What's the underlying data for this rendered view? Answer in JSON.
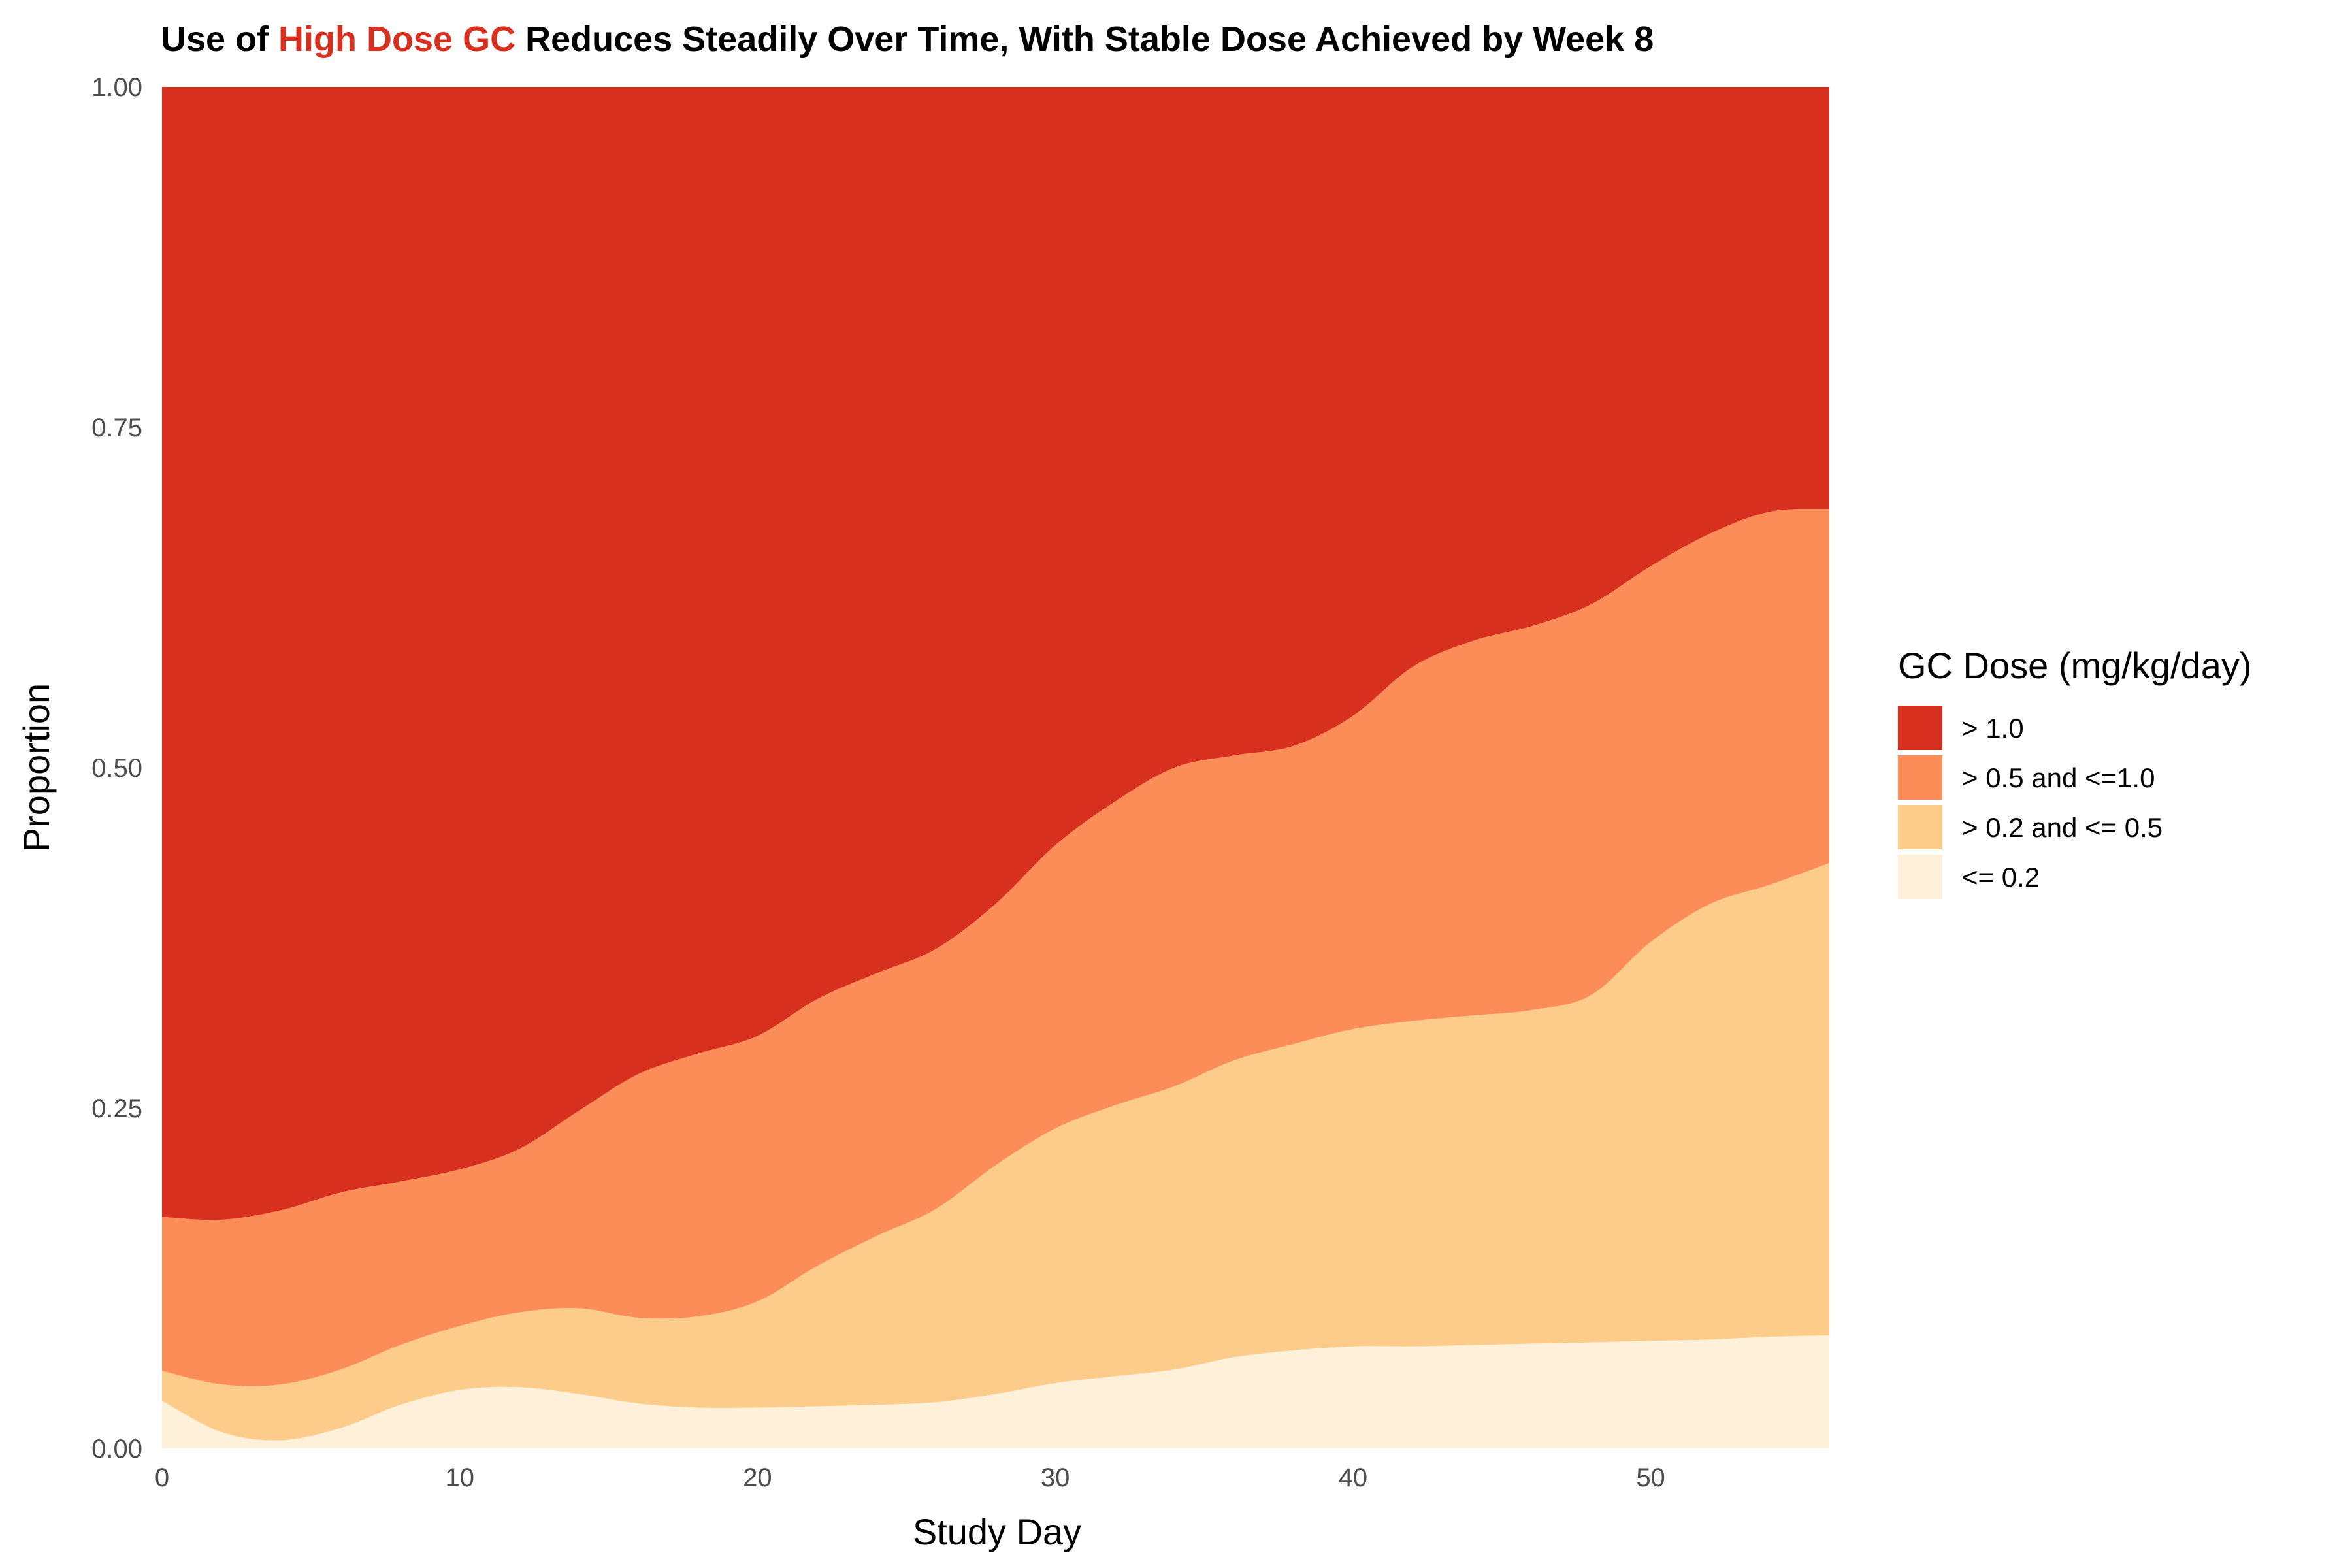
{
  "chart_data": {
    "type": "area",
    "stacked": "proportion",
    "title": {
      "prefix": "Use of ",
      "highlight": "High Dose GC",
      "suffix": " Reduces Steadily Over Time, With Stable Dose Achieved by Week 8"
    },
    "title_highlight_color": "#D7301F",
    "xlabel": "Study Day",
    "ylabel": "Proportion",
    "xlim": [
      0,
      56
    ],
    "ylim": [
      0,
      1
    ],
    "x_ticks": [
      0,
      10,
      20,
      30,
      40,
      50
    ],
    "y_ticks": [
      0,
      0.25,
      0.5,
      0.75,
      1.0
    ],
    "y_tick_labels": [
      "0.00",
      "0.25",
      "0.50",
      "0.75",
      "1.00"
    ],
    "grid": false,
    "legend": {
      "title": "GC Dose (mg/kg/day)",
      "position": "right"
    },
    "x": [
      0,
      2,
      4,
      6,
      8,
      10,
      12,
      14,
      16,
      18,
      20,
      22,
      24,
      26,
      28,
      30,
      32,
      34,
      36,
      38,
      40,
      42,
      44,
      46,
      48,
      50,
      52,
      54,
      56
    ],
    "series": [
      {
        "name": "<= 0.2",
        "color": "#FEF0D9",
        "values": [
          0.035,
          0.012,
          0.006,
          0.015,
          0.032,
          0.043,
          0.045,
          0.04,
          0.033,
          0.03,
          0.03,
          0.031,
          0.032,
          0.034,
          0.04,
          0.048,
          0.053,
          0.058,
          0.067,
          0.072,
          0.075,
          0.075,
          0.076,
          0.077,
          0.078,
          0.079,
          0.08,
          0.082,
          0.083
        ]
      },
      {
        "name": "> 0.2 and <= 0.5",
        "color": "#FDCC8A",
        "values": [
          0.022,
          0.035,
          0.041,
          0.043,
          0.044,
          0.047,
          0.055,
          0.063,
          0.063,
          0.067,
          0.078,
          0.103,
          0.124,
          0.142,
          0.168,
          0.187,
          0.199,
          0.208,
          0.218,
          0.225,
          0.233,
          0.239,
          0.242,
          0.245,
          0.255,
          0.293,
          0.32,
          0.332,
          0.347
        ]
      },
      {
        "name": "> 0.5 and <=1.0",
        "color": "#FC8D59",
        "values": [
          0.113,
          0.121,
          0.128,
          0.13,
          0.12,
          0.115,
          0.12,
          0.145,
          0.179,
          0.193,
          0.195,
          0.196,
          0.193,
          0.191,
          0.192,
          0.208,
          0.223,
          0.234,
          0.224,
          0.219,
          0.23,
          0.26,
          0.275,
          0.282,
          0.287,
          0.276,
          0.272,
          0.274,
          0.26
        ]
      },
      {
        "name": "> 1.0",
        "color": "#D7301F",
        "values": [
          0.83,
          0.832,
          0.825,
          0.812,
          0.804,
          0.795,
          0.78,
          0.752,
          0.725,
          0.71,
          0.697,
          0.67,
          0.651,
          0.633,
          0.6,
          0.557,
          0.525,
          0.5,
          0.491,
          0.484,
          0.462,
          0.426,
          0.407,
          0.396,
          0.38,
          0.352,
          0.328,
          0.312,
          0.31
        ]
      }
    ]
  }
}
